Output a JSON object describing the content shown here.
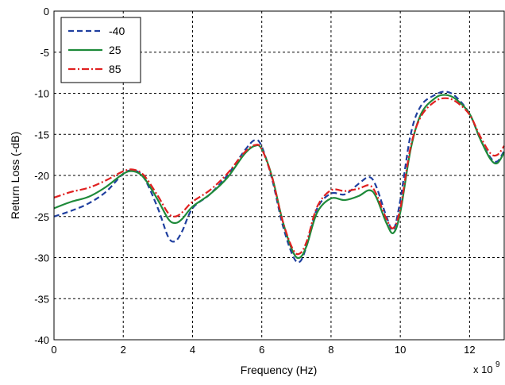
{
  "chart_data": {
    "type": "line",
    "xlabel": "Frequency (Hz)",
    "ylabel": "Return Loss (-dB)",
    "x_multiplier_label": "x 10",
    "x_multiplier_exp": "9",
    "xlim": [
      0,
      13
    ],
    "ylim": [
      -40,
      0
    ],
    "xticks": [
      0,
      2,
      4,
      6,
      8,
      10,
      12
    ],
    "yticks": [
      0,
      -5,
      -10,
      -15,
      -20,
      -25,
      -30,
      -35,
      -40
    ],
    "grid": true,
    "legend_position": "top-left",
    "series": [
      {
        "name": "-40",
        "color": "#1f3f9f",
        "dash": "dashed",
        "x": [
          0,
          0.5,
          1.0,
          1.5,
          2.0,
          2.3,
          2.6,
          3.0,
          3.3,
          3.5,
          3.7,
          4.0,
          4.5,
          5.0,
          5.5,
          5.8,
          6.0,
          6.3,
          6.6,
          6.9,
          7.1,
          7.3,
          7.6,
          8.0,
          8.4,
          8.8,
          9.1,
          9.3,
          9.6,
          9.8,
          10.0,
          10.3,
          10.6,
          11.0,
          11.3,
          11.6,
          12.0,
          12.3,
          12.6,
          12.8,
          13.0
        ],
        "y": [
          -25,
          -24.3,
          -23.4,
          -22.0,
          -19.8,
          -19.4,
          -20.3,
          -24.0,
          -27.5,
          -28.0,
          -26.8,
          -24.0,
          -22.3,
          -20.0,
          -17.0,
          -15.7,
          -16.5,
          -20.5,
          -26.0,
          -29.8,
          -30.5,
          -28.5,
          -24.0,
          -22.2,
          -22.3,
          -21.0,
          -20.2,
          -21.3,
          -25.0,
          -26.6,
          -23.0,
          -15.0,
          -11.5,
          -10.2,
          -9.8,
          -10.4,
          -12.5,
          -15.5,
          -17.8,
          -18.3,
          -17.0
        ]
      },
      {
        "name": "25",
        "color": "#1e8a3a",
        "dash": "solid",
        "x": [
          0,
          0.5,
          1.0,
          1.5,
          2.0,
          2.3,
          2.6,
          3.0,
          3.3,
          3.5,
          3.7,
          4.0,
          4.5,
          5.0,
          5.5,
          5.8,
          6.0,
          6.3,
          6.6,
          6.9,
          7.1,
          7.3,
          7.6,
          8.0,
          8.4,
          8.8,
          9.1,
          9.3,
          9.6,
          9.8,
          10.0,
          10.3,
          10.6,
          11.0,
          11.3,
          11.6,
          12.0,
          12.3,
          12.6,
          12.8,
          13.0
        ],
        "y": [
          -24,
          -23.2,
          -22.6,
          -21.4,
          -19.8,
          -19.5,
          -20.3,
          -23.0,
          -25.3,
          -25.8,
          -25.3,
          -23.8,
          -22.3,
          -20.3,
          -17.4,
          -16.4,
          -16.8,
          -20.2,
          -25.5,
          -29.3,
          -30.0,
          -28.5,
          -24.5,
          -22.8,
          -23.0,
          -22.5,
          -21.8,
          -22.6,
          -25.8,
          -27.0,
          -24.5,
          -16.8,
          -12.5,
          -10.6,
          -10.2,
          -10.7,
          -12.5,
          -15.5,
          -18.0,
          -18.5,
          -17.2
        ]
      },
      {
        "name": "85",
        "color": "#e02020",
        "dash": "dashdot",
        "x": [
          0,
          0.5,
          1.0,
          1.5,
          2.0,
          2.3,
          2.6,
          3.0,
          3.3,
          3.5,
          3.7,
          4.0,
          4.5,
          5.0,
          5.5,
          5.8,
          6.0,
          6.3,
          6.6,
          6.9,
          7.1,
          7.3,
          7.6,
          8.0,
          8.4,
          8.8,
          9.1,
          9.3,
          9.6,
          9.8,
          10.0,
          10.3,
          10.6,
          11.0,
          11.3,
          11.6,
          12.0,
          12.3,
          12.6,
          12.8,
          13.0
        ],
        "y": [
          -22.7,
          -22.0,
          -21.5,
          -20.6,
          -19.5,
          -19.3,
          -20.0,
          -22.5,
          -24.6,
          -25.0,
          -24.5,
          -23.2,
          -21.8,
          -19.8,
          -17.2,
          -16.3,
          -16.8,
          -20.3,
          -25.5,
          -29.0,
          -29.5,
          -28.0,
          -23.8,
          -21.8,
          -21.9,
          -21.6,
          -21.2,
          -22.2,
          -25.3,
          -26.4,
          -24.0,
          -16.5,
          -12.8,
          -11.0,
          -10.6,
          -11.0,
          -12.6,
          -15.2,
          -17.3,
          -17.5,
          -16.4
        ]
      }
    ]
  }
}
